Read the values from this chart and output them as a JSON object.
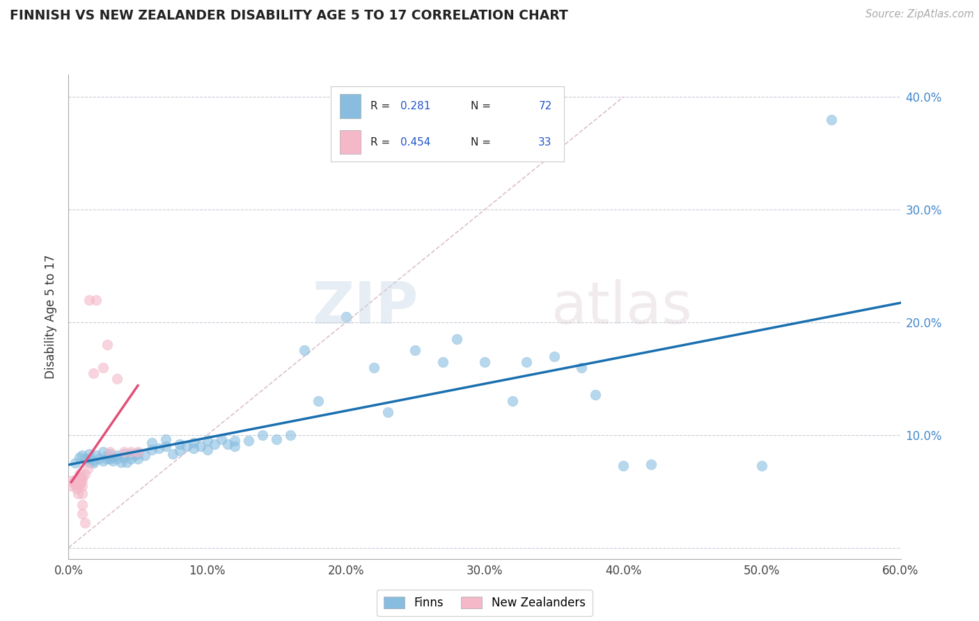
{
  "title": "FINNISH VS NEW ZEALANDER DISABILITY AGE 5 TO 17 CORRELATION CHART",
  "source": "Source: ZipAtlas.com",
  "ylabel": "Disability Age 5 to 17",
  "xmin": 0.0,
  "xmax": 0.6,
  "ymin": -0.01,
  "ymax": 0.42,
  "x_ticks": [
    0.0,
    0.1,
    0.2,
    0.3,
    0.4,
    0.5,
    0.6
  ],
  "x_tick_labels": [
    "0.0%",
    "10.0%",
    "20.0%",
    "30.0%",
    "40.0%",
    "50.0%",
    "60.0%"
  ],
  "y_ticks": [
    0.0,
    0.1,
    0.2,
    0.3,
    0.4
  ],
  "y_tick_labels_right": [
    "",
    "10.0%",
    "20.0%",
    "30.0%",
    "40.0%"
  ],
  "legend_R1": "0.281",
  "legend_N1": "72",
  "legend_R2": "0.454",
  "legend_N2": "33",
  "color_finn": "#88bde0",
  "color_nz": "#f4b8c8",
  "color_finn_line": "#1a6faf",
  "color_nz_line": "#e0507a",
  "color_diagonal": "#d4b0bc",
  "background_color": "#ffffff",
  "grid_color": "#c8ccd8",
  "finn_x": [
    0.005,
    0.008,
    0.01,
    0.012,
    0.015,
    0.015,
    0.015,
    0.018,
    0.018,
    0.02,
    0.022,
    0.025,
    0.025,
    0.028,
    0.028,
    0.03,
    0.03,
    0.032,
    0.032,
    0.035,
    0.035,
    0.038,
    0.04,
    0.04,
    0.042,
    0.045,
    0.045,
    0.048,
    0.05,
    0.05,
    0.055,
    0.06,
    0.06,
    0.065,
    0.07,
    0.07,
    0.075,
    0.08,
    0.08,
    0.085,
    0.09,
    0.09,
    0.095,
    0.1,
    0.1,
    0.105,
    0.11,
    0.115,
    0.12,
    0.12,
    0.13,
    0.14,
    0.15,
    0.16,
    0.17,
    0.18,
    0.2,
    0.22,
    0.23,
    0.25,
    0.27,
    0.28,
    0.3,
    0.32,
    0.33,
    0.35,
    0.37,
    0.38,
    0.4,
    0.42,
    0.5,
    0.55
  ],
  "finn_y": [
    0.075,
    0.08,
    0.082,
    0.079,
    0.076,
    0.083,
    0.079,
    0.077,
    0.075,
    0.082,
    0.079,
    0.077,
    0.085,
    0.079,
    0.082,
    0.079,
    0.083,
    0.08,
    0.077,
    0.082,
    0.079,
    0.076,
    0.08,
    0.083,
    0.076,
    0.083,
    0.079,
    0.082,
    0.084,
    0.079,
    0.082,
    0.087,
    0.093,
    0.088,
    0.09,
    0.096,
    0.083,
    0.092,
    0.086,
    0.09,
    0.093,
    0.088,
    0.09,
    0.095,
    0.087,
    0.092,
    0.096,
    0.092,
    0.095,
    0.09,
    0.095,
    0.1,
    0.096,
    0.1,
    0.175,
    0.13,
    0.205,
    0.16,
    0.12,
    0.175,
    0.165,
    0.185,
    0.165,
    0.13,
    0.165,
    0.17,
    0.16,
    0.136,
    0.073,
    0.074,
    0.073,
    0.38
  ],
  "nz_x": [
    0.002,
    0.003,
    0.004,
    0.005,
    0.005,
    0.006,
    0.006,
    0.007,
    0.007,
    0.008,
    0.008,
    0.008,
    0.009,
    0.009,
    0.01,
    0.01,
    0.01,
    0.01,
    0.01,
    0.01,
    0.012,
    0.012,
    0.014,
    0.015,
    0.018,
    0.02,
    0.025,
    0.028,
    0.03,
    0.035,
    0.04,
    0.045,
    0.05
  ],
  "nz_y": [
    0.055,
    0.06,
    0.058,
    0.06,
    0.056,
    0.058,
    0.052,
    0.057,
    0.048,
    0.055,
    0.06,
    0.065,
    0.058,
    0.062,
    0.063,
    0.06,
    0.055,
    0.048,
    0.038,
    0.03,
    0.065,
    0.022,
    0.07,
    0.22,
    0.155,
    0.22,
    0.16,
    0.18,
    0.085,
    0.15,
    0.085,
    0.085,
    0.085
  ]
}
